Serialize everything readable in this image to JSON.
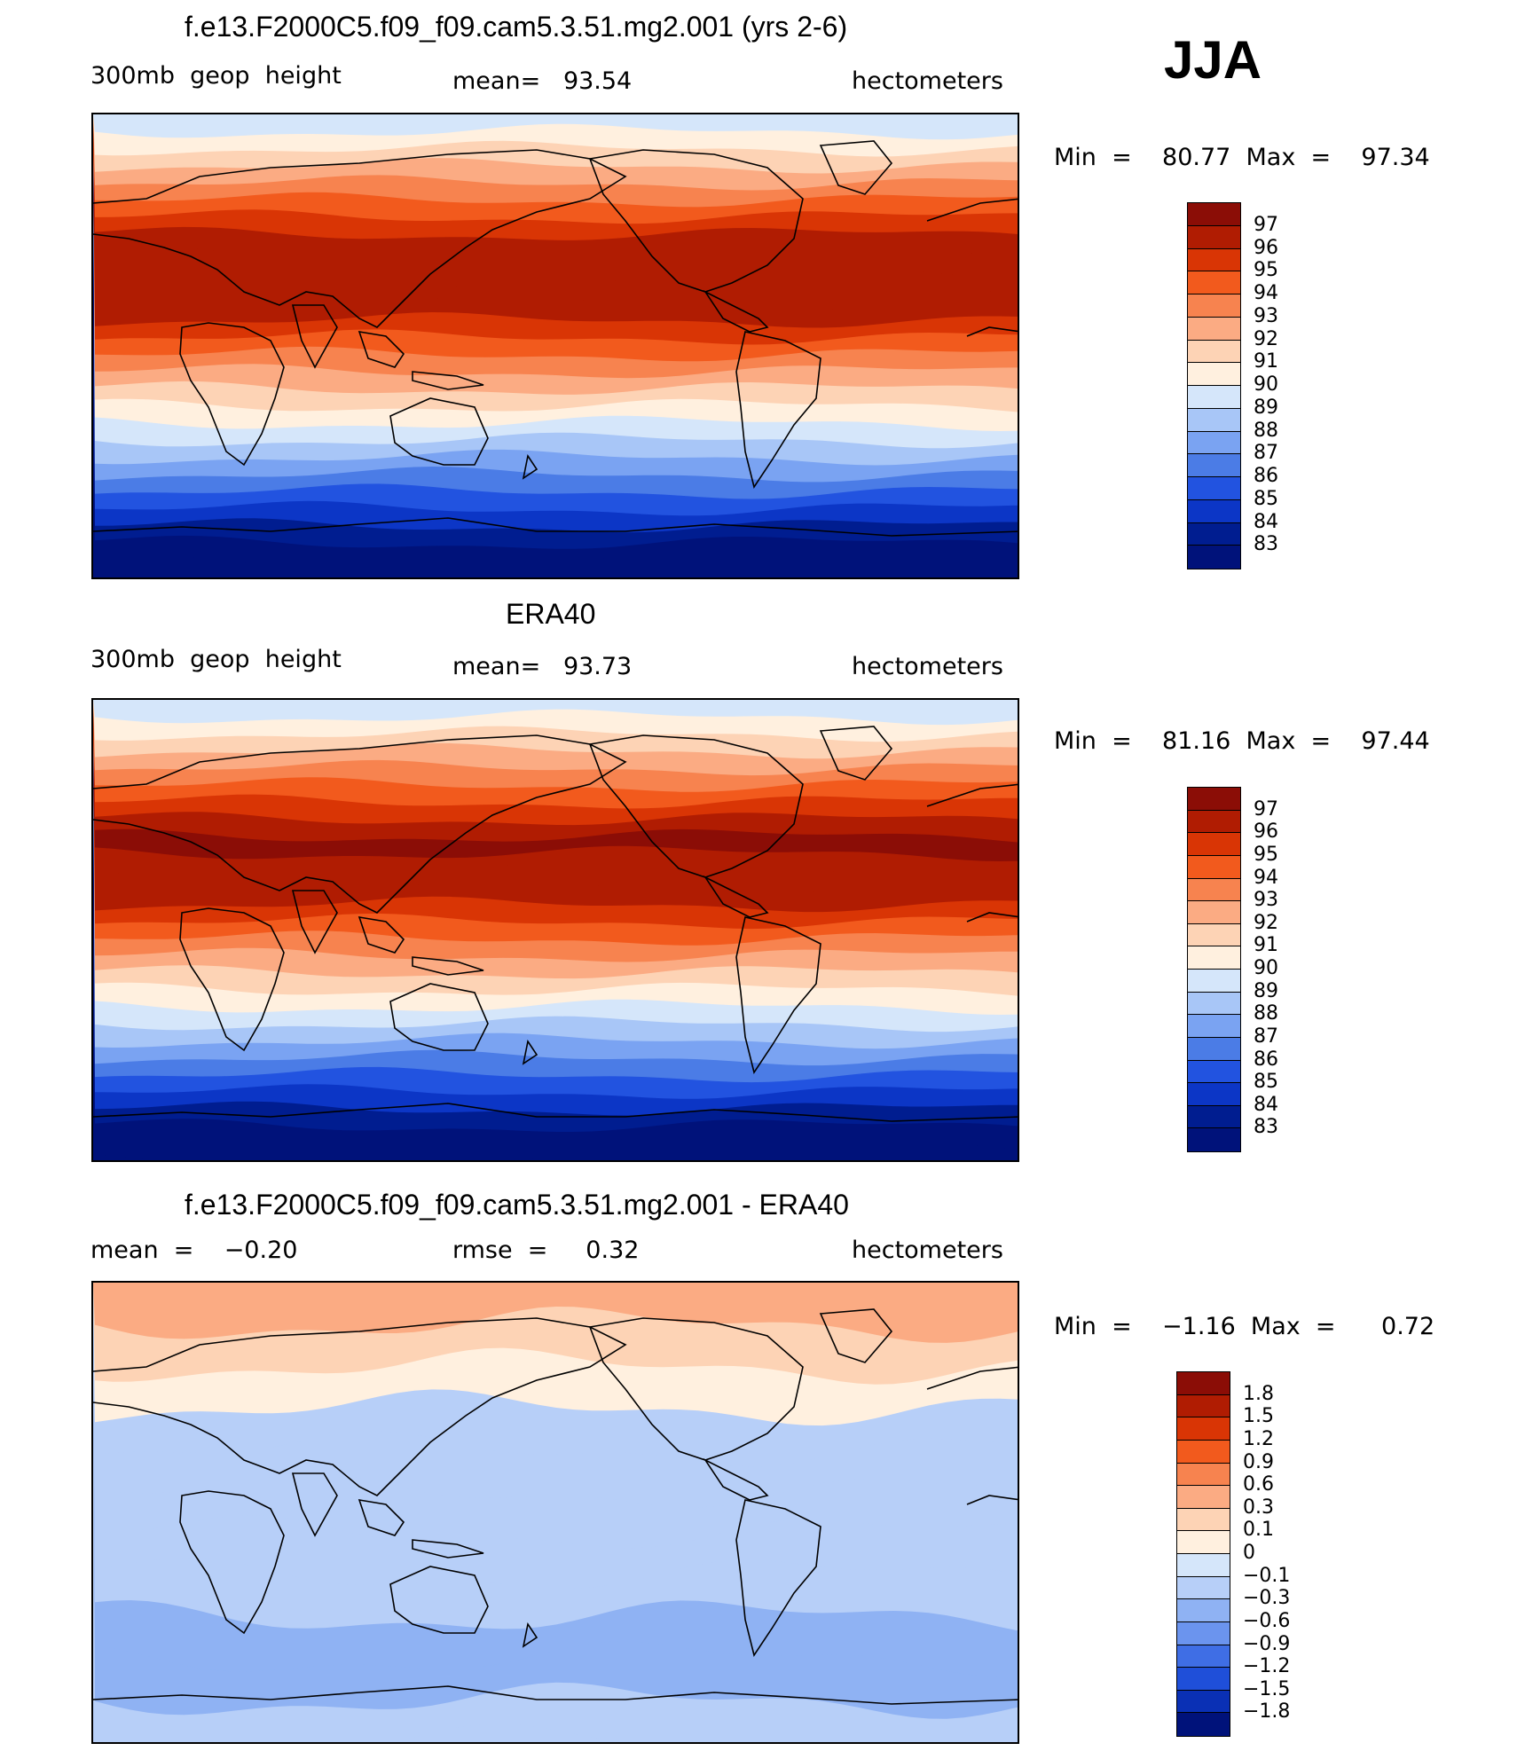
{
  "season": "JJA",
  "panels": [
    {
      "title": "f.e13.F2000C5.f09_f09.cam5.3.51.mg2.001 (yrs 2-6)",
      "variable": "300mb  geop  height",
      "stat": "mean=   93.54",
      "units": "hectometers",
      "minmax": "Min  =    80.77  Max  =    97.34",
      "colorbar": {
        "labels": [
          "97",
          "96",
          "95",
          "94",
          "93",
          "92",
          "91",
          "90",
          "89",
          "88",
          "87",
          "86",
          "85",
          "84",
          "83"
        ],
        "colors": [
          "#8b0d06",
          "#b01c02",
          "#d93505",
          "#f25a1d",
          "#f7834f",
          "#fbab83",
          "#fdd3b5",
          "#fff0df",
          "#d5e6fa",
          "#a8c6f7",
          "#7aa3f2",
          "#4b7ce6",
          "#2253e0",
          "#0c36c6",
          "#001d90",
          "#00127a"
        ]
      },
      "map_bands_north_to_south": [
        "#d5e6fa",
        "#fff0df",
        "#fdd3b5",
        "#fbab83",
        "#f7834f",
        "#f25a1d",
        "#d93505",
        "#b01c02",
        "#b01c02",
        "#b01c02",
        "#b01c02",
        "#b01c02",
        "#d93505",
        "#f25a1d",
        "#f7834f",
        "#fbab83",
        "#fdd3b5",
        "#fff0df",
        "#d5e6fa",
        "#a8c6f7",
        "#7aa3f2",
        "#4b7ce6",
        "#2253e0",
        "#0c36c6",
        "#001d90",
        "#00127a",
        "#00127a"
      ]
    },
    {
      "title": "ERA40",
      "variable": "300mb  geop  height",
      "stat": "mean=   93.73",
      "units": "hectometers",
      "minmax": "Min  =    81.16  Max  =    97.44",
      "colorbar": {
        "labels": [
          "97",
          "96",
          "95",
          "94",
          "93",
          "92",
          "91",
          "90",
          "89",
          "88",
          "87",
          "86",
          "85",
          "84",
          "83"
        ],
        "colors": [
          "#8b0d06",
          "#b01c02",
          "#d93505",
          "#f25a1d",
          "#f7834f",
          "#fbab83",
          "#fdd3b5",
          "#fff0df",
          "#d5e6fa",
          "#a8c6f7",
          "#7aa3f2",
          "#4b7ce6",
          "#2253e0",
          "#0c36c6",
          "#001d90",
          "#00127a"
        ]
      },
      "map_bands_north_to_south": [
        "#d5e6fa",
        "#fff0df",
        "#fdd3b5",
        "#fbab83",
        "#f7834f",
        "#f25a1d",
        "#d93505",
        "#b01c02",
        "#8b0d06",
        "#b01c02",
        "#b01c02",
        "#b01c02",
        "#d93505",
        "#f25a1d",
        "#f7834f",
        "#fbab83",
        "#fdd3b5",
        "#fff0df",
        "#d5e6fa",
        "#a8c6f7",
        "#7aa3f2",
        "#4b7ce6",
        "#2253e0",
        "#0c36c6",
        "#001d90",
        "#00127a",
        "#00127a"
      ]
    },
    {
      "title": "f.e13.F2000C5.f09_f09.cam5.3.51.mg2.001 - ERA40",
      "variable": "mean  =    −0.20",
      "stat": "rmse  =     0.32",
      "units": "hectometers",
      "minmax": "Min  =    −1.16  Max  =      0.72",
      "colorbar": {
        "labels": [
          "1.8",
          "1.5",
          "1.2",
          "0.9",
          "0.6",
          "0.3",
          "0.1",
          "0",
          "−0.1",
          "−0.3",
          "−0.6",
          "−0.9",
          "−1.2",
          "−1.5",
          "−1.8"
        ],
        "colors": [
          "#8b0d06",
          "#b01c02",
          "#d93505",
          "#f25a1d",
          "#f7834f",
          "#fbab83",
          "#fdd3b5",
          "#fff0df",
          "#d5e6fa",
          "#b7cff8",
          "#8fb2f3",
          "#6b94ee",
          "#3f6ee5",
          "#1f4fd9",
          "#0a30b5",
          "#00127a"
        ]
      },
      "map_bands_north_to_south": [
        "#fbab83",
        "#fdd3b5",
        "#fff0df",
        "#b7cff8",
        "#b7cff8",
        "#b7cff8",
        "#b7cff8",
        "#b7cff8",
        "#8fb2f3",
        "#8fb2f3",
        "#b7cff8"
      ]
    }
  ]
}
